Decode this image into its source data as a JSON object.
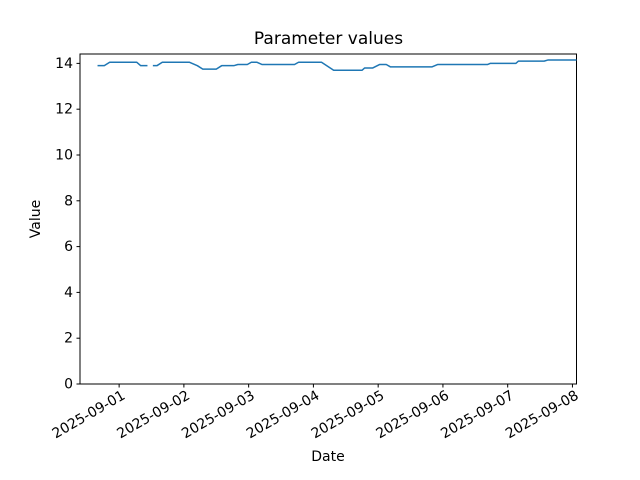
{
  "chart_data": {
    "type": "line",
    "title": "Parameter values",
    "xlabel": "Date",
    "ylabel": "Value",
    "line_color": "#1f77b4",
    "axis_color": "#000000",
    "background_color": "#ffffff",
    "grid": false,
    "legend": null,
    "xlim": [
      "2025-08-31T09:30",
      "2025-09-08T01:30"
    ],
    "ylim": [
      0,
      14.41
    ],
    "yticks": [
      0,
      2,
      4,
      6,
      8,
      10,
      12,
      14
    ],
    "xticks": [
      "2025-09-01",
      "2025-09-02",
      "2025-09-03",
      "2025-09-04",
      "2025-09-05",
      "2025-09-06",
      "2025-09-07",
      "2025-09-08"
    ],
    "x_tick_rotation_deg": 30,
    "series": [
      {
        "name": "Parameter values",
        "points": [
          [
            "2025-08-31T16:00",
            13.9
          ],
          [
            "2025-08-31T18:30",
            13.9
          ],
          [
            "2025-08-31T20:30",
            14.05
          ],
          [
            "2025-09-01T06:30",
            14.05
          ],
          [
            "2025-09-01T08:00",
            13.9
          ],
          [
            "2025-09-01T10:30",
            13.9
          ],
          null,
          [
            "2025-09-01T12:30",
            13.9
          ],
          [
            "2025-09-01T14:00",
            13.9
          ],
          [
            "2025-09-01T16:00",
            14.05
          ],
          [
            "2025-09-02T02:00",
            14.05
          ],
          [
            "2025-09-02T05:00",
            13.9
          ],
          [
            "2025-09-02T07:00",
            13.75
          ],
          [
            "2025-09-02T12:00",
            13.75
          ],
          [
            "2025-09-02T14:00",
            13.9
          ],
          [
            "2025-09-02T18:30",
            13.9
          ],
          [
            "2025-09-02T20:00",
            13.95
          ],
          [
            "2025-09-02T23:30",
            13.95
          ],
          [
            "2025-09-03T01:00",
            14.05
          ],
          [
            "2025-09-03T03:00",
            14.05
          ],
          [
            "2025-09-03T05:00",
            13.95
          ],
          [
            "2025-09-03T17:00",
            13.95
          ],
          [
            "2025-09-03T18:30",
            14.05
          ],
          [
            "2025-09-04T03:00",
            14.05
          ],
          [
            "2025-09-04T07:30",
            13.7
          ],
          [
            "2025-09-04T18:00",
            13.7
          ],
          [
            "2025-09-04T19:00",
            13.8
          ],
          [
            "2025-09-04T22:00",
            13.8
          ],
          [
            "2025-09-05T00:30",
            13.95
          ],
          [
            "2025-09-05T03:00",
            13.95
          ],
          [
            "2025-09-05T04:30",
            13.85
          ],
          [
            "2025-09-05T20:00",
            13.85
          ],
          [
            "2025-09-05T22:00",
            13.95
          ],
          [
            "2025-09-06T16:30",
            13.95
          ],
          [
            "2025-09-06T17:30",
            14.0
          ],
          [
            "2025-09-07T03:00",
            14.0
          ],
          [
            "2025-09-07T04:00",
            14.1
          ],
          [
            "2025-09-07T13:30",
            14.1
          ],
          [
            "2025-09-07T15:00",
            14.15
          ],
          [
            "2025-09-08T01:30",
            14.15
          ]
        ]
      }
    ]
  }
}
